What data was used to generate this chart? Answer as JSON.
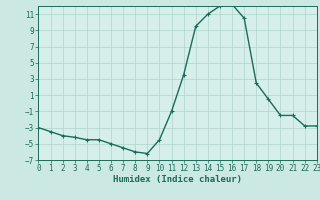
{
  "x": [
    0,
    1,
    2,
    3,
    4,
    5,
    6,
    7,
    8,
    9,
    10,
    11,
    12,
    13,
    14,
    15,
    16,
    17,
    18,
    19,
    20,
    21,
    22,
    23
  ],
  "y": [
    -3.0,
    -3.5,
    -4.0,
    -4.2,
    -4.5,
    -4.5,
    -5.0,
    -5.5,
    -6.0,
    -6.2,
    -4.5,
    -1.0,
    3.5,
    9.5,
    11.0,
    12.0,
    12.2,
    10.5,
    2.5,
    0.5,
    -1.5,
    -1.5,
    -2.8,
    -2.8
  ],
  "line_color": "#1a6b5a",
  "marker": "+",
  "marker_size": 3.5,
  "bg_color": "#cce8e2",
  "grid_color": "#b0d4cc",
  "plot_bg": "#d6efeb",
  "xlabel": "Humidex (Indice chaleur)",
  "xlim": [
    0,
    23
  ],
  "ylim": [
    -7,
    12
  ],
  "yticks": [
    -7,
    -5,
    -3,
    -1,
    1,
    3,
    5,
    7,
    9,
    11
  ],
  "xticks": [
    0,
    1,
    2,
    3,
    4,
    5,
    6,
    7,
    8,
    9,
    10,
    11,
    12,
    13,
    14,
    15,
    16,
    17,
    18,
    19,
    20,
    21,
    22,
    23
  ],
  "xlabel_fontsize": 6.5,
  "tick_fontsize": 5.5,
  "line_width": 1.0
}
